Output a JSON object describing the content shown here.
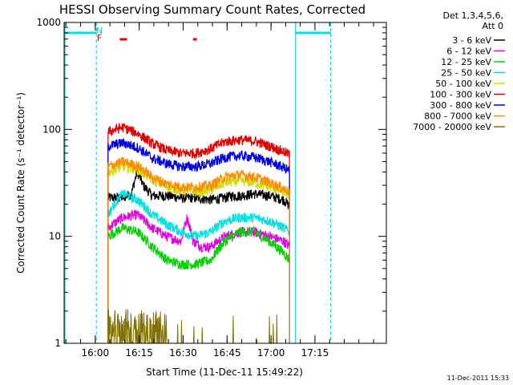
{
  "chart_data": {
    "type": "line",
    "title": "HESSI Observing Summary Count Rates, Corrected",
    "xlabel": "Start Time (11-Dec-11 15:49:22)",
    "ylabel": "Corrected Count Rate (s⁻¹ detector⁻¹)",
    "x_ticks": [
      "16:00",
      "16:15",
      "16:30",
      "16:45",
      "17:00",
      "17:15"
    ],
    "y_ticks": [
      "1",
      "10",
      "100",
      "1000"
    ],
    "y_scale": "log",
    "ylim": [
      1,
      1000
    ],
    "xlim_min_after_start": [
      0,
      110
    ],
    "legend_header": [
      "Det 1,3,4,5,6,",
      "Att 0"
    ],
    "legend_placement": "right",
    "markers": [
      {
        "label": "N",
        "color": "#00cccc"
      },
      {
        "label": "F",
        "color": "#e00000"
      }
    ],
    "data_window_min": [
      15,
      77
    ],
    "series": [
      {
        "name": "3 - 6 keV",
        "color": "#000000",
        "x": [
          15,
          20,
          23,
          25,
          27,
          30,
          33,
          35,
          40,
          45,
          50,
          55,
          57,
          60,
          65,
          70,
          75,
          77
        ],
        "y": [
          23,
          23,
          25,
          40,
          30,
          24,
          24,
          24,
          23,
          23,
          22,
          23,
          24,
          24,
          25,
          24,
          22,
          19
        ]
      },
      {
        "name": "6 - 12 keV",
        "color": "#e000e0",
        "x": [
          15,
          20,
          25,
          30,
          35,
          40,
          42,
          44,
          47,
          50,
          55,
          60,
          65,
          70,
          75,
          77
        ],
        "y": [
          12,
          15,
          16,
          12,
          10,
          9,
          15,
          9,
          8,
          8,
          10,
          11,
          11,
          10,
          9,
          8
        ]
      },
      {
        "name": "12 - 25 keV",
        "color": "#00d000",
        "x": [
          15,
          20,
          25,
          30,
          35,
          40,
          45,
          50,
          55,
          60,
          65,
          70,
          75,
          77
        ],
        "y": [
          10,
          12,
          11,
          8,
          6,
          5.5,
          5.5,
          6,
          9,
          11,
          11,
          9,
          7,
          6
        ]
      },
      {
        "name": "25 - 50 keV",
        "color": "#00e0e0",
        "x": [
          15,
          20,
          25,
          30,
          35,
          40,
          45,
          50,
          55,
          60,
          65,
          70,
          75,
          77
        ],
        "y": [
          16,
          25,
          22,
          16,
          13,
          11,
          10,
          11,
          14,
          15,
          15,
          14,
          12,
          11
        ]
      },
      {
        "name": "50 - 100 keV",
        "color": "#d8d800",
        "x": [
          15,
          20,
          25,
          30,
          35,
          40,
          45,
          50,
          55,
          60,
          65,
          70,
          75,
          77
        ],
        "y": [
          40,
          45,
          42,
          34,
          29,
          27,
          26,
          27,
          32,
          33,
          32,
          29,
          26,
          24
        ]
      },
      {
        "name": "100 - 300 keV",
        "color": "#e00000",
        "x": [
          15,
          20,
          25,
          30,
          35,
          40,
          45,
          50,
          55,
          60,
          65,
          70,
          75,
          77
        ],
        "y": [
          95,
          105,
          92,
          74,
          64,
          60,
          60,
          66,
          77,
          80,
          78,
          70,
          62,
          58
        ]
      },
      {
        "name": "300 - 800 keV",
        "color": "#0000e0",
        "x": [
          15,
          20,
          25,
          30,
          35,
          40,
          45,
          50,
          55,
          60,
          65,
          70,
          75,
          77
        ],
        "y": [
          70,
          75,
          68,
          54,
          48,
          45,
          45,
          48,
          55,
          57,
          55,
          50,
          44,
          41
        ]
      },
      {
        "name": "800 - 7000 keV",
        "color": "#ff8c00",
        "x": [
          15,
          20,
          25,
          30,
          35,
          40,
          45,
          50,
          55,
          60,
          65,
          70,
          75,
          77
        ],
        "y": [
          45,
          50,
          46,
          36,
          31,
          29,
          29,
          30,
          36,
          38,
          36,
          32,
          28,
          26
        ]
      },
      {
        "name": "7000 - 20000 keV",
        "color": "#807000",
        "x": [
          15,
          17,
          19,
          21,
          23,
          25,
          27,
          29,
          31,
          33,
          35,
          40,
          45,
          50,
          55,
          60,
          65,
          70,
          75
        ],
        "y": [
          2,
          1.3,
          2,
          1.5,
          2,
          1.7,
          2,
          1.2,
          2,
          1.4,
          1.1,
          1,
          1,
          1,
          1,
          1.3,
          1.2,
          1,
          1
        ]
      }
    ]
  },
  "stamp": "11-Dec-2011 15:33"
}
